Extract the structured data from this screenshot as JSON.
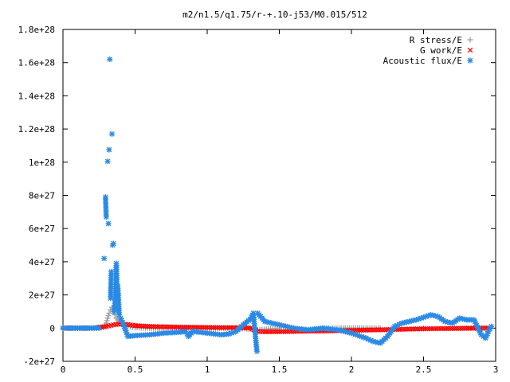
{
  "chart_data": {
    "type": "scatter",
    "title": "m2/n1.5/q1.75/r-+.10-j53/M0.015/512",
    "xlabel": "",
    "ylabel": "",
    "xlim": [
      0,
      3
    ],
    "ylim": [
      -2e+27,
      1.8e+28
    ],
    "grid": false,
    "legend_position": "top-right",
    "x_ticks": [
      0,
      0.5,
      1,
      1.5,
      2,
      2.5,
      3
    ],
    "x_tick_labels": [
      "0",
      "0.5",
      "1",
      "1.5",
      "2",
      "2.5",
      "3"
    ],
    "y_ticks": [
      -2e+27,
      0,
      2e+27,
      4e+27,
      6e+27,
      8e+27,
      1e+28,
      1.2e+28,
      1.4e+28,
      1.6e+28,
      1.8e+28
    ],
    "y_tick_labels": [
      "-2e+27",
      "0",
      "2e+27",
      "4e+27",
      "6e+27",
      "8e+27",
      "1e+28",
      "1.2e+28",
      "1.4e+28",
      "1.6e+28",
      "1.8e+28"
    ],
    "series": [
      {
        "name": "R stress/E",
        "marker": "plus",
        "color": "#a0a0a0",
        "points": [
          [
            0.0,
            0
          ],
          [
            0.1,
            0
          ],
          [
            0.2,
            0
          ],
          [
            0.28,
            5e+25
          ],
          [
            0.3,
            3e+26
          ],
          [
            0.31,
            6e+26
          ],
          [
            0.32,
            9e+26
          ],
          [
            0.33,
            1.1e+27
          ],
          [
            0.34,
            1.25e+27
          ],
          [
            0.35,
            1e+27
          ],
          [
            0.36,
            8e+26
          ],
          [
            0.37,
            6e+26
          ],
          [
            0.38,
            5e+26
          ],
          [
            0.4,
            3e+26
          ],
          [
            0.45,
            1e+26
          ],
          [
            0.5,
            3e+25
          ],
          [
            0.6,
            0
          ],
          [
            0.8,
            0
          ],
          [
            1.0,
            0
          ],
          [
            1.2,
            0
          ],
          [
            1.35,
            -1e+26
          ],
          [
            1.5,
            0
          ],
          [
            1.8,
            0
          ],
          [
            2.0,
            0
          ],
          [
            2.2,
            0
          ],
          [
            2.5,
            0
          ],
          [
            2.8,
            0
          ],
          [
            2.95,
            0
          ]
        ]
      },
      {
        "name": "G work/E",
        "marker": "cross",
        "color": "#ff0000",
        "points": [
          [
            0.0,
            0
          ],
          [
            0.2,
            0
          ],
          [
            0.3,
            1e+26
          ],
          [
            0.35,
            2e+26
          ],
          [
            0.4,
            2.5e+26
          ],
          [
            0.45,
            2.2e+26
          ],
          [
            0.5,
            1.5e+26
          ],
          [
            0.6,
            1e+26
          ],
          [
            0.7,
            8e+25
          ],
          [
            0.8,
            6e+25
          ],
          [
            0.9,
            5e+25
          ],
          [
            1.0,
            4e+25
          ],
          [
            1.1,
            3e+25
          ],
          [
            1.2,
            3e+25
          ],
          [
            1.3,
            1e+25
          ],
          [
            1.35,
            -2e+26
          ],
          [
            1.4,
            -2.2e+26
          ],
          [
            1.5,
            -2.1e+26
          ],
          [
            1.6,
            -2e+26
          ],
          [
            1.7,
            -1.8e+26
          ],
          [
            1.8,
            -1.7e+26
          ],
          [
            1.9,
            -1.6e+26
          ],
          [
            2.0,
            -1.4e+26
          ],
          [
            2.1,
            -1.2e+26
          ],
          [
            2.2,
            -1e+26
          ],
          [
            2.3,
            -8e+25
          ],
          [
            2.4,
            -6e+25
          ],
          [
            2.5,
            -4e+25
          ],
          [
            2.6,
            -3e+25
          ],
          [
            2.7,
            -2e+25
          ],
          [
            2.8,
            -1e+25
          ],
          [
            2.9,
            0
          ],
          [
            2.95,
            0
          ]
        ]
      },
      {
        "name": "Acoustic flux/E",
        "marker": "star",
        "color": "#2a8ae6",
        "points": [
          [
            0.0,
            0
          ],
          [
            0.05,
            0
          ],
          [
            0.1,
            0
          ],
          [
            0.15,
            0
          ],
          [
            0.2,
            0
          ],
          [
            0.25,
            0
          ],
          [
            0.285,
            4.2e+27
          ],
          [
            0.295,
            7.9e+27
          ],
          [
            0.3,
            6.7e+27
          ],
          [
            0.31,
            1.005e+28
          ],
          [
            0.315,
            6.3e+27
          ],
          [
            0.32,
            1.075e+28
          ],
          [
            0.325,
            1.62e+28
          ],
          [
            0.33,
            1.8e+27
          ],
          [
            0.335,
            3.4e+27
          ],
          [
            0.34,
            1.17e+28
          ],
          [
            0.345,
            5e+27
          ],
          [
            0.35,
            5.1e+27
          ],
          [
            0.355,
            1e+27
          ],
          [
            0.36,
            1.5e+27
          ],
          [
            0.365,
            2e+27
          ],
          [
            0.37,
            3.9e+27
          ],
          [
            0.375,
            2.3e+27
          ],
          [
            0.38,
            2.5e+27
          ],
          [
            0.385,
            1.7e+27
          ],
          [
            0.39,
            8e+26
          ],
          [
            0.4,
            6e+26
          ],
          [
            0.42,
            2e+26
          ],
          [
            0.45,
            -5e+26
          ],
          [
            0.5,
            -4.5e+26
          ],
          [
            0.6,
            -4e+26
          ],
          [
            0.7,
            -3e+26
          ],
          [
            0.8,
            -2.5e+26
          ],
          [
            0.85,
            -2e+26
          ],
          [
            0.87,
            -5e+26
          ],
          [
            0.9,
            -2e+26
          ],
          [
            1.0,
            -3e+26
          ],
          [
            1.1,
            -4e+26
          ],
          [
            1.15,
            -3.5e+26
          ],
          [
            1.2,
            -2e+26
          ],
          [
            1.25,
            2e+26
          ],
          [
            1.3,
            5.5e+26
          ],
          [
            1.32,
            9e+26
          ],
          [
            1.34,
            -1e+27
          ],
          [
            1.345,
            -1.4e+27
          ],
          [
            1.35,
            9e+26
          ],
          [
            1.4,
            4e+26
          ],
          [
            1.5,
            2e+26
          ],
          [
            1.6,
            0
          ],
          [
            1.7,
            -1e+26
          ],
          [
            1.8,
            0
          ],
          [
            1.9,
            -1e+26
          ],
          [
            2.0,
            -3e+26
          ],
          [
            2.1,
            -6e+26
          ],
          [
            2.15,
            -8e+26
          ],
          [
            2.2,
            -9e+26
          ],
          [
            2.25,
            -5e+26
          ],
          [
            2.3,
            1e+26
          ],
          [
            2.35,
            3e+26
          ],
          [
            2.4,
            4e+26
          ],
          [
            2.45,
            5e+26
          ],
          [
            2.5,
            6.5e+26
          ],
          [
            2.55,
            8e+26
          ],
          [
            2.6,
            7e+26
          ],
          [
            2.65,
            4e+26
          ],
          [
            2.7,
            3e+26
          ],
          [
            2.75,
            6e+26
          ],
          [
            2.8,
            5e+26
          ],
          [
            2.85,
            5e+26
          ],
          [
            2.9,
            -4e+26
          ],
          [
            2.93,
            -6e+26
          ],
          [
            2.95,
            -2e+26
          ],
          [
            2.97,
            1e+26
          ]
        ]
      }
    ]
  }
}
